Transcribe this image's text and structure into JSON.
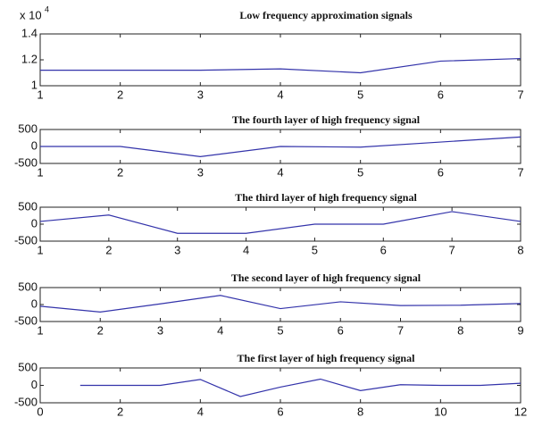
{
  "chart_data": [
    {
      "type": "line",
      "title": "Low frequency approximation signals",
      "y_multiplier": "x 10",
      "y_multiplier_exponent": "4",
      "x": [
        1,
        2,
        3,
        4,
        5,
        6,
        7
      ],
      "values": [
        1.12,
        1.12,
        1.12,
        1.13,
        1.1,
        1.19,
        1.21
      ],
      "color": "#3333aa",
      "xlim": [
        1,
        7
      ],
      "xticks": [
        1,
        2,
        3,
        4,
        5,
        6,
        7
      ],
      "ylim": [
        1,
        1.4
      ],
      "yticks": [
        1,
        1.2,
        1.4
      ]
    },
    {
      "type": "line",
      "title": "The fourth layer of high frequency signal",
      "x": [
        1,
        2,
        3,
        4,
        5,
        6,
        7
      ],
      "values": [
        0,
        0,
        -300,
        0,
        -20,
        130,
        280
      ],
      "color": "#3333aa",
      "xlim": [
        1,
        7
      ],
      "xticks": [
        1,
        2,
        3,
        4,
        5,
        6,
        7
      ],
      "ylim": [
        -500,
        500
      ],
      "yticks": [
        -500,
        0,
        500
      ]
    },
    {
      "type": "line",
      "title": "The third layer of high frequency signal",
      "x": [
        1,
        2,
        3,
        4,
        5,
        6,
        7,
        8
      ],
      "values": [
        80,
        270,
        -270,
        -270,
        0,
        0,
        370,
        80
      ],
      "color": "#3333aa",
      "xlim": [
        1,
        8
      ],
      "xticks": [
        1,
        2,
        3,
        4,
        5,
        6,
        7,
        8
      ],
      "ylim": [
        -500,
        500
      ],
      "yticks": [
        -500,
        0,
        500
      ]
    },
    {
      "type": "line",
      "title": "The second layer of high frequency signal",
      "x": [
        1,
        2,
        3,
        4,
        5,
        6,
        7,
        8,
        9
      ],
      "values": [
        -50,
        -220,
        20,
        270,
        -120,
        80,
        -30,
        -20,
        30
      ],
      "color": "#3333aa",
      "xlim": [
        1,
        9
      ],
      "xticks": [
        1,
        2,
        3,
        4,
        5,
        6,
        7,
        8,
        9
      ],
      "ylim": [
        -500,
        500
      ],
      "yticks": [
        -500,
        0,
        500
      ]
    },
    {
      "type": "line",
      "title": "The first layer of high frequency signal",
      "x": [
        1,
        2,
        3,
        4,
        5,
        6,
        7,
        8,
        9,
        10,
        11,
        12
      ],
      "values": [
        0,
        0,
        0,
        170,
        -320,
        -50,
        180,
        -150,
        20,
        0,
        0,
        60
      ],
      "color": "#3333aa",
      "xlim": [
        0,
        12
      ],
      "xticks": [
        0,
        2,
        4,
        6,
        8,
        10,
        12
      ],
      "ylim": [
        -500,
        500
      ],
      "yticks": [
        -500,
        0,
        500
      ]
    }
  ]
}
